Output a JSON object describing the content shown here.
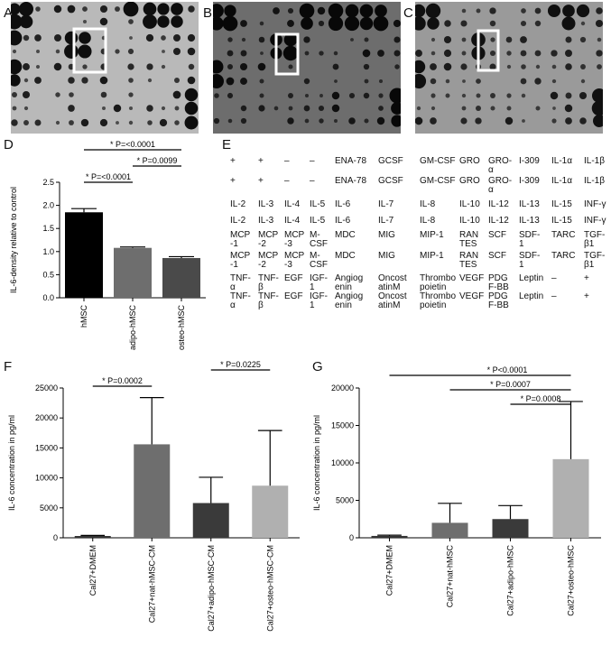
{
  "panels": {
    "A": "A",
    "B": "B",
    "C": "C",
    "D": "D",
    "E": "E",
    "F": "F",
    "G": "G"
  },
  "blots": [
    {
      "id": "A",
      "background": "#b9b9b9",
      "spot": "#0e0e0e"
    },
    {
      "id": "B",
      "background": "#6d6d6d",
      "spot": "#080808"
    },
    {
      "id": "C",
      "background": "#9a9a9a",
      "spot": "#101010"
    }
  ],
  "array_table": {
    "rows": [
      [
        "+",
        "+",
        "–",
        "–",
        "ENA-78",
        "GCSF",
        "GM-CSF",
        "GRO",
        "GRO-\nα",
        "I-309",
        "IL-1α",
        "IL-1β"
      ],
      [
        "+",
        "+",
        "–",
        "–",
        "ENA-78",
        "GCSF",
        "GM-CSF",
        "GRO",
        "GRO-\nα",
        "I-309",
        "IL-1α",
        "IL-1β"
      ],
      [
        "IL-2",
        "IL-3",
        "IL-4",
        "IL-5",
        "IL-6",
        "IL-7",
        "IL-8",
        "IL-10",
        "IL-12",
        "IL-13",
        "IL-15",
        "INF-γ"
      ],
      [
        "IL-2",
        "IL-3",
        "IL-4",
        "IL-5",
        "IL-6",
        "IL-7",
        "IL-8",
        "IL-10",
        "IL-12",
        "IL-13",
        "IL-15",
        "INF-γ"
      ],
      [
        "MCP\n-1",
        "MCP\n-2",
        "MCP\n-3",
        "M-\nCSF",
        "MDC",
        "MIG",
        "MIP-1",
        "RAN\nTES",
        "SCF",
        "SDF-\n1",
        "TARC",
        "TGF-\nβ1"
      ],
      [
        "MCP\n-1",
        "MCP\n-2",
        "MCP\n-3",
        "M-\nCSF",
        "MDC",
        "MIG",
        "MIP-1",
        "RAN\nTES",
        "SCF",
        "SDF-\n1",
        "TARC",
        "TGF-\nβ1"
      ],
      [
        "TNF-\nα",
        "TNF-\nβ",
        "EGF",
        "IGF-\n1",
        "Angiog\nenin",
        "Oncost\natinM",
        "Thrombo\npoietin",
        "VEGF",
        "PDG\nF-BB",
        "Leptin",
        "–",
        "+"
      ],
      [
        "TNF-\nα",
        "TNF-\nβ",
        "EGF",
        "IGF-\n1",
        "Angiog\nenin",
        "Oncost\natinM",
        "Thrombo\npoietin",
        "VEGF",
        "PDG\nF-BB",
        "Leptin",
        "–",
        "+"
      ]
    ]
  },
  "chart_data": [
    {
      "id": "D",
      "type": "bar",
      "categories": [
        "hMSC",
        "adipo-hMSC",
        "osteo-hMSC"
      ],
      "values": [
        1.85,
        1.08,
        0.86
      ],
      "errors": [
        0.08,
        0.02,
        0.03
      ],
      "colors": [
        "#000000",
        "#6e6e6e",
        "#4a4a4a"
      ],
      "ylabel": "IL-6-density relative to control",
      "ylim": [
        0,
        2.5
      ],
      "yticks": [
        "0.0",
        "0.5",
        "1.0",
        "1.5",
        "2.0",
        "2.5"
      ],
      "annotations": [
        {
          "from": 0,
          "to": 1,
          "label": "*  P=<0.0001"
        },
        {
          "from": 1,
          "to": 2,
          "label": "*  P=0.0099"
        },
        {
          "from": 0,
          "to": 2,
          "label": "*  P=<0.0001"
        }
      ]
    },
    {
      "id": "F",
      "type": "bar",
      "categories": [
        "Cal27+DMEM",
        "Cal27+nat-hMSC-CM",
        "Cal27+adipo-hMSC-CM",
        "Cal27+osteo-hMSC-CM"
      ],
      "values": [
        300,
        15600,
        5800,
        8700
      ],
      "errors": [
        100,
        7800,
        4300,
        9200
      ],
      "colors": [
        "#333333",
        "#6e6e6e",
        "#3a3a3a",
        "#b0b0b0"
      ],
      "ylabel": "IL-6 concentration in pg/ml",
      "ylim": [
        0,
        25000
      ],
      "yticks": [
        "0",
        "5000",
        "10000",
        "15000",
        "20000",
        "25000"
      ],
      "annotations": [
        {
          "from": 0,
          "to": 1,
          "label": "*  P=0.0002"
        },
        {
          "from": 2,
          "to": 3,
          "label": "*  P=0.0225"
        }
      ]
    },
    {
      "id": "G",
      "type": "bar",
      "categories": [
        "Cal27+DMEM",
        "Cal27+nat-hMSC",
        "Cal27+adipo-hMSC",
        "Cal27+osteo-hMSC"
      ],
      "values": [
        250,
        2000,
        2500,
        10500
      ],
      "errors": [
        100,
        2600,
        1800,
        7700
      ],
      "colors": [
        "#333333",
        "#6e6e6e",
        "#3a3a3a",
        "#b0b0b0"
      ],
      "ylabel": "IL-6 concentration in pg/ml",
      "ylim": [
        0,
        20000
      ],
      "yticks": [
        "0",
        "5000",
        "10000",
        "15000",
        "20000"
      ],
      "annotations": [
        {
          "from": 2,
          "to": 3,
          "label": "*  P=0.0008"
        },
        {
          "from": 1,
          "to": 3,
          "label": "*  P=0.0007"
        },
        {
          "from": 0,
          "to": 3,
          "label": "*  P<0.0001"
        }
      ]
    }
  ]
}
